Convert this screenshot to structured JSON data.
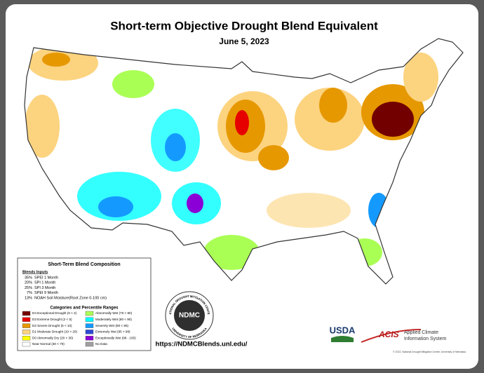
{
  "title": "Short-term Objective Drought Blend Equivalent",
  "date": "June 5, 2023",
  "composition": {
    "title": "Short-Term Blend Composition",
    "inputs_heading": "Blends Inputs",
    "inputs": [
      {
        "percent": "35%",
        "name": "SPEI 1 Month"
      },
      {
        "percent": "20%",
        "name": "SPI 1 Month"
      },
      {
        "percent": "25%",
        "name": "SPI 3 Month"
      },
      {
        "percent": "7%",
        "name": "SPEI 9 Month"
      },
      {
        "percent": "13%",
        "name": "NOAH Soil Moisture(Root Zone 0-100 cm)"
      }
    ],
    "categories_heading": "Categories and Percentile Ranges",
    "categories": [
      {
        "label": "D4 Exceptional Drought (0 < 2)",
        "color": "#730000"
      },
      {
        "label": "D3 Extreme Drought (2 < 5)",
        "color": "#e60000"
      },
      {
        "label": "D2 Severe Drought (5 < 10)",
        "color": "#e69800"
      },
      {
        "label": "D1 Moderate Drought (10 < 20)",
        "color": "#fcd37f"
      },
      {
        "label": "D0 Abnormally Dry (20 < 30)",
        "color": "#ffff00"
      },
      {
        "label": "Near Normal (30 < 70)",
        "color": "#ffffff"
      },
      {
        "label": "Abnormally Wet (70 < 80)",
        "color": "#aaff55"
      },
      {
        "label": "Moderately Wet (80 < 90)",
        "color": "#01ffff"
      },
      {
        "label": "Severely Wet (90 < 95)",
        "color": "#149aff"
      },
      {
        "label": "Extremely Wet (95 < 98)",
        "color": "#2c49d6"
      },
      {
        "label": "Exceptionally Wet (98 - 100)",
        "color": "#8a00d6"
      },
      {
        "label": "No Data",
        "color": "#a0a0a0"
      }
    ]
  },
  "ndmc_logo": {
    "abbr": "NDMC",
    "top_text": "NATIONAL DROUGHT MITIGATION CENTER",
    "bottom_text": "UNIVERSITY OF NEBRASKA"
  },
  "url": "https://NDMCBlends.unl.edu/",
  "usda": "USDA",
  "acis": {
    "abbr": "ACIS",
    "name_line1": "Applied Climate",
    "name_line2": "Information System"
  },
  "copyright": "© 2022, National Drought Mitigation Center, University of Nebraska"
}
